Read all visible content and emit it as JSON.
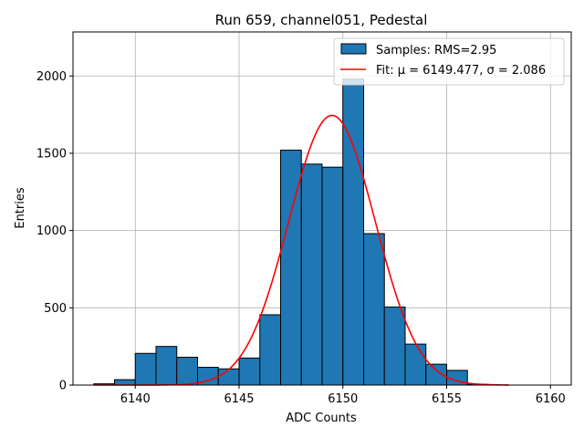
{
  "chart_data": {
    "type": "bar",
    "title": "Run 659, channel051, Pedestal",
    "xlabel": "ADC Counts",
    "ylabel": "Entries",
    "xlim": [
      6137.0,
      6161.0
    ],
    "ylim": [
      0,
      2285
    ],
    "xticks": [
      6140,
      6145,
      6150,
      6155,
      6160
    ],
    "yticks": [
      0,
      500,
      1000,
      1500,
      2000
    ],
    "grid": true,
    "legend_position": "top-right",
    "bar_color": "#1f77b4",
    "fit_color": "#ff0000",
    "histogram": {
      "name": "Samples: RMS=2.95",
      "bin_edges": [
        6138,
        6139,
        6140,
        6141,
        6142,
        6143,
        6144,
        6145,
        6146,
        6147,
        6148,
        6149,
        6150,
        6151,
        6152,
        6153,
        6154,
        6155,
        6156,
        6157,
        6158
      ],
      "counts": [
        8,
        35,
        205,
        250,
        180,
        115,
        105,
        175,
        455,
        1520,
        1430,
        1410,
        1980,
        980,
        505,
        265,
        135,
        95,
        5,
        0
      ]
    },
    "fit": {
      "name": "Fit: μ = 6149.477, σ = 2.086",
      "mu": 6149.477,
      "sigma": 2.086,
      "amplitude": 1745,
      "x_range": [
        6138,
        6158
      ]
    }
  }
}
